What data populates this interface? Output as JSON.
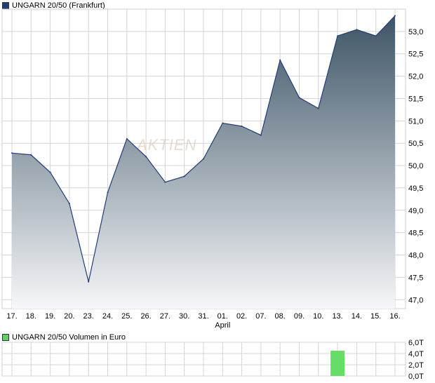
{
  "chart_data": [
    {
      "type": "area",
      "title": "UNGARN 20/50 (Frankfurt)",
      "legend_color": "#1f3d7a",
      "watermark": "AKTIEN",
      "month_label": "April",
      "month_label_under": "01.",
      "x": [
        "17.",
        "18.",
        "19.",
        "20.",
        "23.",
        "24.",
        "25.",
        "26.",
        "27.",
        "30.",
        "31.",
        "01.",
        "02.",
        "07.",
        "08.",
        "09.",
        "10.",
        "13.",
        "14.",
        "15.",
        "16."
      ],
      "values": [
        50.28,
        50.24,
        49.85,
        49.15,
        47.4,
        49.4,
        50.6,
        50.2,
        49.63,
        49.76,
        50.15,
        50.95,
        50.88,
        50.68,
        52.36,
        51.52,
        51.28,
        52.9,
        53.04,
        52.9,
        53.35
      ],
      "ylim": [
        46.8,
        53.5
      ],
      "yticks": [
        "47,0",
        "47,5",
        "48,0",
        "48,5",
        "49,0",
        "49,5",
        "50,0",
        "50,5",
        "51,0",
        "51,5",
        "52,0",
        "52,5",
        "53,0"
      ],
      "ytick_values": [
        47.0,
        47.5,
        48.0,
        48.5,
        49.0,
        49.5,
        50.0,
        50.5,
        51.0,
        51.5,
        52.0,
        52.5,
        53.0
      ],
      "grid": true,
      "colors": {
        "line": "#1f3d7a",
        "fill_top": "#3e5566",
        "fill_bottom": "#f6f7f9",
        "grid": "#d4d4d4"
      }
    },
    {
      "type": "bar",
      "title": "UNGARN 20/50 Volumen in Euro",
      "legend_color": "#66cc66",
      "x": [
        "17.",
        "18.",
        "19.",
        "20.",
        "23.",
        "24.",
        "25.",
        "26.",
        "27.",
        "30.",
        "31.",
        "01.",
        "02.",
        "07.",
        "08.",
        "09.",
        "10.",
        "13.",
        "14.",
        "15.",
        "16."
      ],
      "values": [
        0,
        0,
        0,
        0,
        0,
        0,
        0,
        0,
        0,
        0,
        0,
        0,
        0,
        0,
        0,
        0,
        0,
        4.5,
        0,
        0,
        0
      ],
      "unit": "T",
      "ylim": [
        0,
        6
      ],
      "yticks": [
        "0,0T",
        "2,0T",
        "4,0T",
        "6,0T"
      ],
      "ytick_values": [
        0,
        2,
        4,
        6
      ],
      "grid": true,
      "colors": {
        "bar": "#66dd66",
        "grid": "#d4d4d4"
      }
    }
  ]
}
